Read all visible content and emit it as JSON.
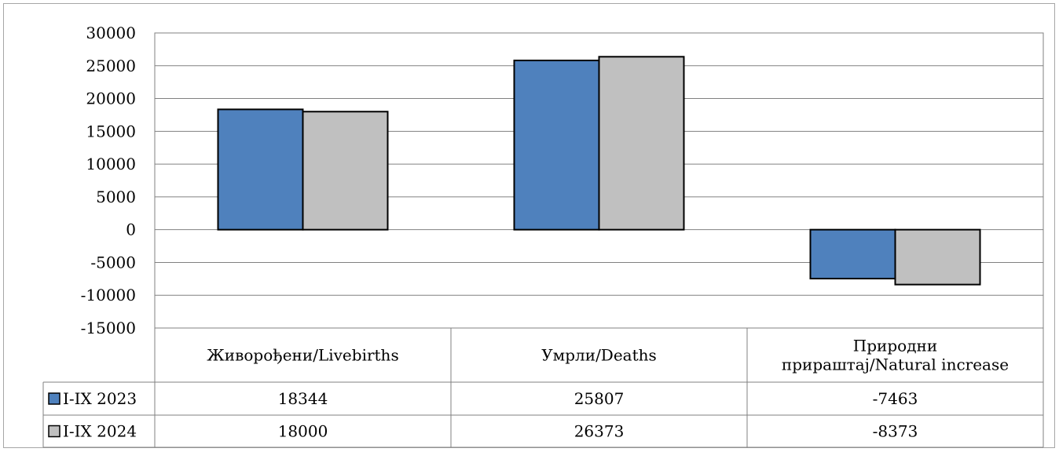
{
  "chart_data": {
    "type": "bar",
    "title": "",
    "xlabel": "",
    "ylabel": "",
    "ylim": [
      -15000,
      30000
    ],
    "yticks": [
      30000,
      25000,
      20000,
      15000,
      10000,
      5000,
      0,
      -5000,
      -10000,
      -15000
    ],
    "categories": [
      [
        "Живорођени/Livebirths"
      ],
      [
        "Умрли/Deaths"
      ],
      [
        "Природни",
        "прираштај/Natural increase"
      ]
    ],
    "series": [
      {
        "name": "I-IX 2023",
        "values": [
          18344,
          25807,
          -7463
        ],
        "color": "#4f81bd"
      },
      {
        "name": "I-IX 2024",
        "values": [
          18000,
          26373,
          -8373
        ],
        "color": "#c0c0c0"
      }
    ],
    "data_table": true,
    "grid": true,
    "legend": "data-table"
  }
}
